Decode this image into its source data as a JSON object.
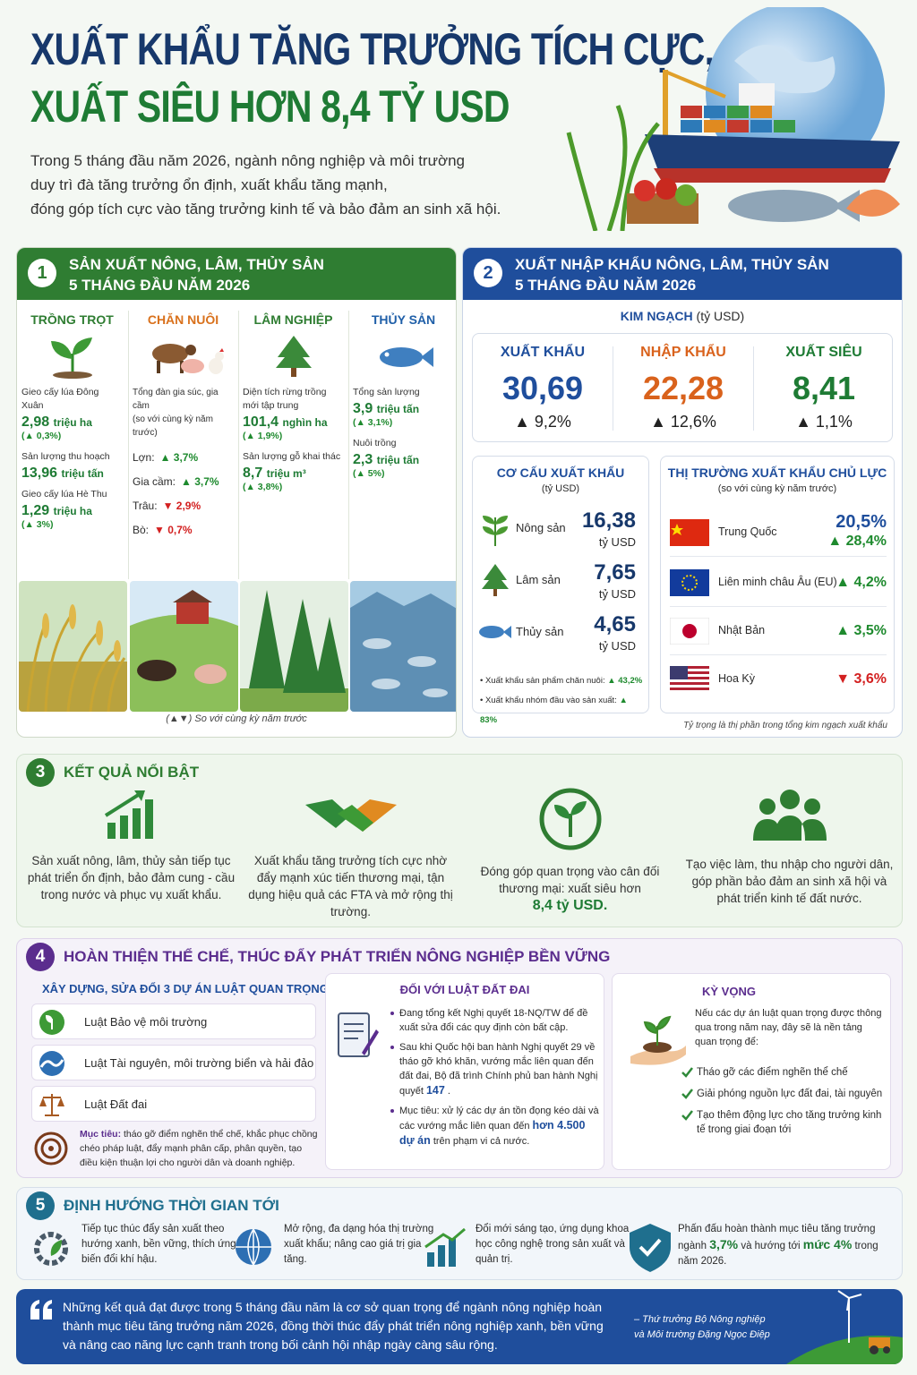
{
  "header": {
    "title": [
      "XUẤT KHẨU TĂNG TRƯỞNG TÍCH CỰC,",
      "XUẤT SIÊU HƠN 8,4 TỶ USD"
    ],
    "intro": [
      "Trong 5 tháng đầu năm 2026, ngành nông nghiệp và môi trường",
      "duy trì đà tăng trưởng ổn định, xuất khẩu tăng mạnh,",
      "đóng góp tích cực vào tăng trưởng kinh tế và bảo đảm an sinh xã hội."
    ]
  },
  "production": {
    "number": "1",
    "title": [
      "SẢN XUẤT NÔNG, LÂM, THỦY SẢN",
      "5 THÁNG ĐẦU NĂM 2026"
    ],
    "crops": {
      "name": "TRỒNG TRỌT",
      "items": [
        {
          "label": "Gieo cấy lúa Đông Xuân",
          "value": "2,98",
          "unit": "triệu ha",
          "change": "(▲ 0,3%)"
        },
        {
          "label": "Sản lượng thu hoạch",
          "value": "13,96",
          "unit": "triệu tấn"
        },
        {
          "label": "Gieo cấy lúa Hè Thu",
          "value": "1,29",
          "unit": "triệu ha",
          "change": "(▲ 3%)"
        }
      ]
    },
    "livestock": {
      "name": "CHĂN NUÔI",
      "intro": "Tổng đàn gia súc, gia cầm",
      "sub": "(so với cùng kỳ năm trước)",
      "rows": [
        {
          "label": "Lợn:",
          "change": "▲ 3,7%"
        },
        {
          "label": "Gia cầm:",
          "change": "▲ 3,7%"
        },
        {
          "label": "Trâu:",
          "change": "▼ 2,9%"
        },
        {
          "label": "Bò:",
          "change": "▼ 0,7%"
        }
      ]
    },
    "forestry": {
      "name": "LÂM NGHIỆP",
      "items": [
        {
          "label": "Diện tích rừng trồng mới tập trung",
          "value": "101,4",
          "unit": "nghìn ha",
          "change": "(▲ 1,9%)"
        },
        {
          "label": "Sản lượng gỗ khai thác",
          "value": "8,7",
          "unit": "triệu m³",
          "change": "(▲ 3,8%)"
        }
      ]
    },
    "fishery": {
      "name": "THỦY SẢN",
      "items": [
        {
          "label": "Tổng sản lượng",
          "value": "3,9",
          "unit": "triệu tấn",
          "change": "(▲ 3,1%)"
        },
        {
          "label": "Nuôi trồng",
          "value": "2,3",
          "unit": "triệu tấn",
          "change": "(▲ 5%)"
        }
      ]
    },
    "note": "(▲▼) So với cùng kỳ năm trước"
  },
  "trade": {
    "number": "2",
    "title": [
      "XUẤT NHẬP KHẨU NÔNG, LÂM, THỦY SẢN",
      "5 THÁNG ĐẦU NĂM 2026"
    ],
    "turnover": {
      "label": "KIM NGẠCH",
      "unit": "(tỷ USD)",
      "items": [
        {
          "name": "XUẤT KHẨU",
          "value": "30,69",
          "change": "▲ 9,2%"
        },
        {
          "name": "NHẬP KHẨU",
          "value": "22,28",
          "change": "▲ 12,6%"
        },
        {
          "name": "XUẤT SIÊU",
          "value": "8,41",
          "change": "▲ 1,1%"
        }
      ]
    },
    "structure": {
      "title": "CƠ CẤU XUẤT KHẨU",
      "unit": "(tỷ USD)",
      "items": [
        {
          "name": "Nông sản",
          "value": "16,38",
          "unit": "tỷ USD"
        },
        {
          "name": "Lâm sản",
          "value": "7,65",
          "unit": "tỷ USD"
        },
        {
          "name": "Thủy sản",
          "value": "4,65",
          "unit": "tỷ USD"
        }
      ],
      "notes": [
        {
          "label": "• Xuất khẩu sản phẩm chăn nuôi:",
          "change": "▲ 43,2%"
        },
        {
          "label": "• Xuất khẩu nhóm đầu vào sản xuất:",
          "change": "▲ 83%"
        }
      ]
    },
    "markets": {
      "title": "THỊ TRƯỜNG XUẤT KHẨU CHỦ LỰC",
      "sub": "(so với cùng kỳ năm trước)",
      "items": [
        {
          "name": "Trung Quốc",
          "share": "20,5%",
          "change": "▲ 28,4%"
        },
        {
          "name": "Liên minh châu Âu (EU)",
          "change": "▲ 4,2%"
        },
        {
          "name": "Nhật Bản",
          "change": "▲ 3,5%"
        },
        {
          "name": "Hoa Kỳ",
          "change": "▼ 3,6%"
        }
      ],
      "note": "Tỷ trọng là thị phần trong tổng kim ngạch xuất khẩu"
    }
  },
  "highlights": {
    "number": "3",
    "title": "KẾT QUẢ NỔI BẬT",
    "items": [
      {
        "parts": [
          {
            "text": "Sản xuất nông, lâm, thủy sản tiếp tục phát triển ổn định, bảo đảm cung - cầu trong nước và phục vụ xuất khẩu."
          }
        ]
      },
      {
        "parts": [
          {
            "text": "Xuất khẩu tăng trưởng tích cực nhờ đẩy mạnh xúc tiến thương mại, tận dụng hiệu quả các FTA và mở rộng thị trường."
          }
        ]
      },
      {
        "parts": [
          {
            "text": "Đóng góp quan trọng vào cân đối thương mại: xuất siêu hơn"
          },
          {
            "text": "8,4 tỷ USD.",
            "strong": true
          }
        ]
      },
      {
        "parts": [
          {
            "text": "Tạo việc làm, thu nhập cho người dân, góp phần bảo đảm an sinh xã hội và phát triển kinh tế đất nước."
          }
        ]
      }
    ]
  },
  "institutions": {
    "number": "4",
    "title": "HOÀN THIỆN THỂ CHẾ, THÚC ĐẨY PHÁT TRIỂN NÔNG NGHIỆP BỀN VỮNG",
    "laws": {
      "title": "XÂY DỰNG, SỬA ĐỔI 3 DỰ ÁN LUẬT QUAN TRỌNG",
      "items": [
        "Luật Bảo vệ môi trường",
        "Luật Tài nguyên, môi trường biển và hải đảo",
        "Luật Đất đai"
      ],
      "goal_label": "Mục tiêu:",
      "goal": "tháo gỡ điểm nghẽn thể chế, khắc phục chồng chéo pháp luật, đẩy mạnh phân cấp, phân quyền, tạo điều kiện thuận lợi cho người dân và doanh nghiệp."
    },
    "land_law": {
      "title": "ĐỐI VỚI LUẬT ĐẤT ĐAI",
      "bullets": [
        {
          "parts": [
            {
              "text": "Đang tổng kết Nghị quyết 18-NQ/TW để đề xuất sửa đổi các quy định còn bất cập."
            }
          ]
        },
        {
          "parts": [
            {
              "text": "Sau khi Quốc hội ban hành Nghị quyết 29 về tháo gỡ khó khăn, vướng mắc liên quan đến đất đai, Bộ đã trình Chính phủ ban hành Nghị quyết"
            },
            {
              "text": "147",
              "strong": true
            },
            {
              "text": "."
            }
          ]
        },
        {
          "parts": [
            {
              "text": "Mục tiêu: xử lý các dự án tồn đọng kéo dài và các vướng mắc liên quan đến"
            },
            {
              "text": "hơn 4.500 dự án",
              "strong": true
            },
            {
              "text": "trên phạm vi cả nước."
            }
          ]
        }
      ]
    },
    "expectation": {
      "title": "KỲ VỌNG",
      "intro": "Nếu các dự án luật quan trọng được thông qua trong năm nay, đây sẽ là nền tảng quan trọng để:",
      "items": [
        "Tháo gỡ các điểm nghẽn thể chế",
        "Giải phóng nguồn lực đất đai, tài nguyên",
        "Tạo thêm động lực cho tăng trưởng kinh tế trong giai đoạn tới"
      ]
    }
  },
  "outlook": {
    "number": "5",
    "title": "ĐỊNH HƯỚNG THỜI GIAN TỚI",
    "items": [
      {
        "parts": [
          {
            "text": "Tiếp tục thúc đẩy sản xuất theo hướng xanh, bền vững, thích ứng biến đổi khí hậu."
          }
        ]
      },
      {
        "parts": [
          {
            "text": "Mở rộng, đa dạng hóa thị trường xuất khẩu; nâng cao giá trị gia tăng."
          }
        ]
      },
      {
        "parts": [
          {
            "text": "Đổi mới sáng tạo, ứng dụng khoa học công nghệ trong sản xuất và quản trị."
          }
        ]
      },
      {
        "parts": [
          {
            "text": "Phấn đấu hoàn thành mục tiêu tăng trưởng ngành"
          },
          {
            "text": "3,7%",
            "strong": true
          },
          {
            "text": "và hướng tới"
          },
          {
            "text": "mức 4%",
            "strong": true
          },
          {
            "text": "trong năm 2026."
          }
        ]
      }
    ]
  },
  "quote": {
    "text": "Những kết quả đạt được trong 5 tháng đầu năm là cơ sở quan trọng để ngành nông nghiệp hoàn thành mục tiêu tăng trưởng năm 2026, đồng thời thúc đẩy phát triển nông nghiệp xanh, bền vững và nâng cao năng lực cạnh tranh trong bối cảnh hội nhập ngày càng sâu rộng.",
    "author": [
      "– Thứ trưởng Bộ Nông nghiệp",
      "và Môi trường Đặng Ngọc Điệp"
    ]
  }
}
